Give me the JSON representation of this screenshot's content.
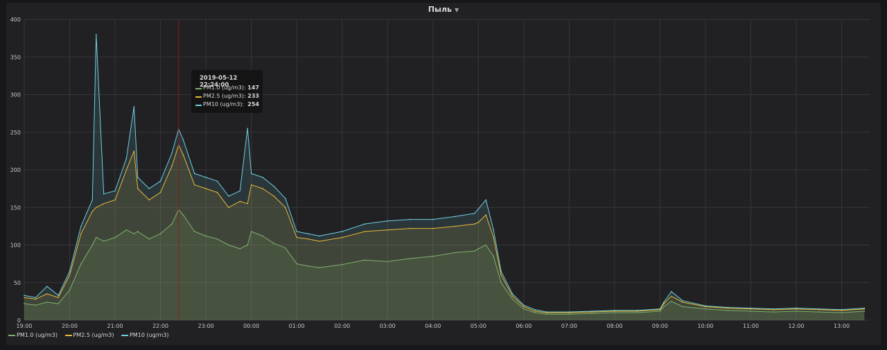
{
  "panel": {
    "title": "Пыль",
    "caret": "▼"
  },
  "tooltip": {
    "time": "2019-05-12 22:24:00",
    "rows": [
      {
        "name": "PM1.0 (ug/m3):",
        "value": "147",
        "color": "#7eb26d"
      },
      {
        "name": "PM2.5 (ug/m3):",
        "value": "233",
        "color": "#eab839"
      },
      {
        "name": "PM10 (ug/m3):",
        "value": "254",
        "color": "#6ed0e0"
      }
    ]
  },
  "legend": [
    {
      "name": "PM1.0 (ug/m3)",
      "color": "#7eb26d"
    },
    {
      "name": "PM2.5 (ug/m3)",
      "color": "#eab839"
    },
    {
      "name": "PM10 (ug/m3)",
      "color": "#6ed0e0"
    }
  ],
  "chart_data": {
    "type": "area",
    "title": "Пыль",
    "x_ticks": [
      "19:00",
      "20:00",
      "21:00",
      "22:00",
      "23:00",
      "00:00",
      "01:00",
      "02:00",
      "03:00",
      "04:00",
      "05:00",
      "06:00",
      "07:00",
      "08:00",
      "09:00",
      "10:00",
      "11:00",
      "12:00",
      "13:00"
    ],
    "y_ticks": [
      0,
      50,
      100,
      150,
      200,
      250,
      300,
      350,
      400
    ],
    "ylim": [
      0,
      400
    ],
    "grid": true,
    "legend_position": "bottom-left",
    "crosshair_time": "22:24",
    "x": [
      "19:00",
      "19:15",
      "19:30",
      "19:45",
      "20:00",
      "20:15",
      "20:30",
      "20:35",
      "20:45",
      "21:00",
      "21:15",
      "21:25",
      "21:30",
      "21:45",
      "22:00",
      "22:15",
      "22:24",
      "22:30",
      "22:45",
      "23:00",
      "23:15",
      "23:30",
      "23:45",
      "23:55",
      "00:00",
      "00:15",
      "00:30",
      "00:45",
      "01:00",
      "01:15",
      "01:30",
      "02:00",
      "02:30",
      "03:00",
      "03:30",
      "04:00",
      "04:30",
      "04:55",
      "05:00",
      "05:10",
      "05:20",
      "05:30",
      "05:45",
      "06:00",
      "06:15",
      "06:30",
      "07:00",
      "07:30",
      "08:00",
      "08:30",
      "09:00",
      "09:05",
      "09:15",
      "09:30",
      "10:00",
      "10:30",
      "11:00",
      "11:30",
      "12:00",
      "12:30",
      "13:00",
      "13:30"
    ],
    "series": [
      {
        "name": "PM1.0 (ug/m3)",
        "color": "#7eb26d",
        "values": [
          22,
          20,
          24,
          22,
          40,
          75,
          100,
          110,
          105,
          110,
          120,
          115,
          118,
          108,
          115,
          128,
          147,
          140,
          118,
          112,
          108,
          100,
          95,
          100,
          118,
          112,
          102,
          96,
          75,
          72,
          70,
          74,
          80,
          78,
          82,
          85,
          90,
          92,
          95,
          100,
          85,
          50,
          28,
          15,
          10,
          8,
          8,
          9,
          10,
          10,
          12,
          18,
          25,
          18,
          15,
          13,
          12,
          11,
          12,
          11,
          10,
          12
        ]
      },
      {
        "name": "PM2.5 (ug/m3)",
        "color": "#eab839",
        "values": [
          30,
          28,
          35,
          30,
          60,
          115,
          145,
          150,
          155,
          160,
          200,
          225,
          175,
          160,
          170,
          205,
          233,
          220,
          180,
          175,
          170,
          150,
          158,
          155,
          180,
          175,
          165,
          150,
          110,
          108,
          105,
          110,
          118,
          120,
          122,
          122,
          125,
          128,
          130,
          140,
          110,
          60,
          32,
          18,
          12,
          10,
          10,
          11,
          12,
          12,
          14,
          22,
          32,
          24,
          18,
          16,
          15,
          14,
          15,
          14,
          13,
          15
        ]
      },
      {
        "name": "PM10 (ug/m3)",
        "color": "#6ed0e0",
        "values": [
          33,
          30,
          45,
          33,
          65,
          125,
          160,
          380,
          168,
          172,
          215,
          284,
          190,
          175,
          185,
          222,
          254,
          240,
          195,
          190,
          185,
          165,
          172,
          255,
          195,
          190,
          178,
          162,
          118,
          115,
          112,
          118,
          128,
          132,
          134,
          134,
          138,
          142,
          148,
          160,
          120,
          65,
          35,
          20,
          14,
          11,
          11,
          12,
          13,
          13,
          15,
          24,
          38,
          26,
          19,
          17,
          16,
          15,
          16,
          15,
          14,
          16
        ]
      }
    ]
  }
}
